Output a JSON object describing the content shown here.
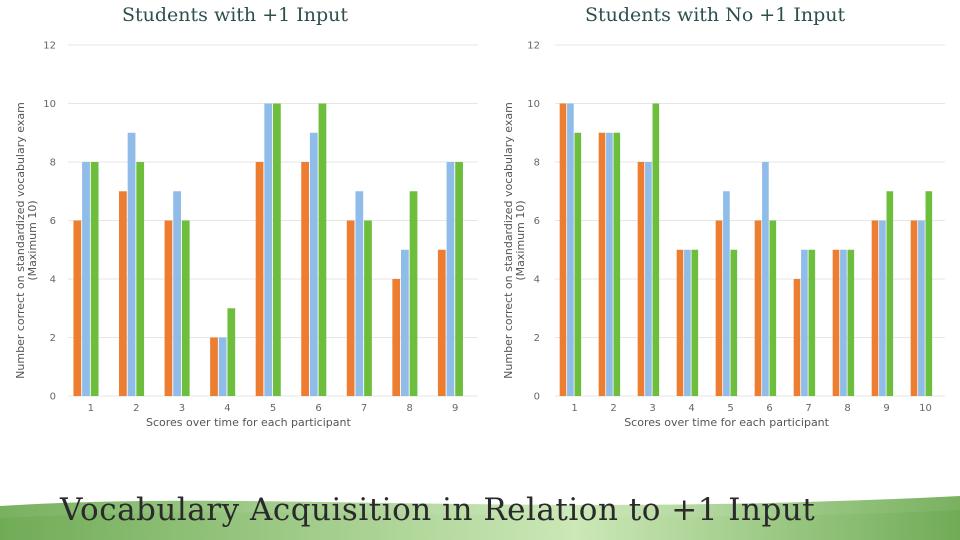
{
  "slide": {
    "main_title": "Vocabulary Acquisition in Relation to +1 Input"
  },
  "colors": {
    "series1": "#ED7D31",
    "series2": "#8FBCE8",
    "series3": "#6DBE3C",
    "band_dark": "#6aa84f",
    "band_light": "#c9e7b4"
  },
  "chart_data": [
    {
      "type": "bar",
      "title": "Students with +1 Input",
      "xlabel": "Scores over time for each participant",
      "ylabel": "Number correct on standardized vocabulary exam (Maximum 10)",
      "ylim": [
        0,
        12
      ],
      "yticks": [
        0,
        2,
        4,
        6,
        8,
        10,
        12
      ],
      "categories": [
        "1",
        "2",
        "3",
        "4",
        "5",
        "6",
        "7",
        "8",
        "9"
      ],
      "series": [
        {
          "values": [
            6,
            7,
            6,
            2,
            8,
            8,
            6,
            4,
            5
          ]
        },
        {
          "values": [
            8,
            9,
            7,
            2,
            10,
            9,
            7,
            5,
            8
          ]
        },
        {
          "values": [
            8,
            8,
            6,
            3,
            10,
            10,
            6,
            7,
            8
          ]
        }
      ],
      "grid": true
    },
    {
      "type": "bar",
      "title": "Students with No +1 Input",
      "xlabel": "Scores over time for each participant",
      "ylabel": "Number correct on standardized vocabulary exam (Maximum 10)",
      "ylim": [
        0,
        12
      ],
      "yticks": [
        0,
        2,
        4,
        6,
        8,
        10,
        12
      ],
      "categories": [
        "1",
        "2",
        "3",
        "4",
        "5",
        "6",
        "7",
        "8",
        "9",
        "10"
      ],
      "series": [
        {
          "values": [
            10,
            9,
            8,
            5,
            6,
            6,
            4,
            5,
            6,
            6
          ]
        },
        {
          "values": [
            10,
            9,
            8,
            5,
            7,
            8,
            5,
            5,
            6,
            6
          ]
        },
        {
          "values": [
            9,
            9,
            10,
            5,
            5,
            6,
            5,
            5,
            7,
            7
          ]
        }
      ],
      "grid": true
    }
  ]
}
